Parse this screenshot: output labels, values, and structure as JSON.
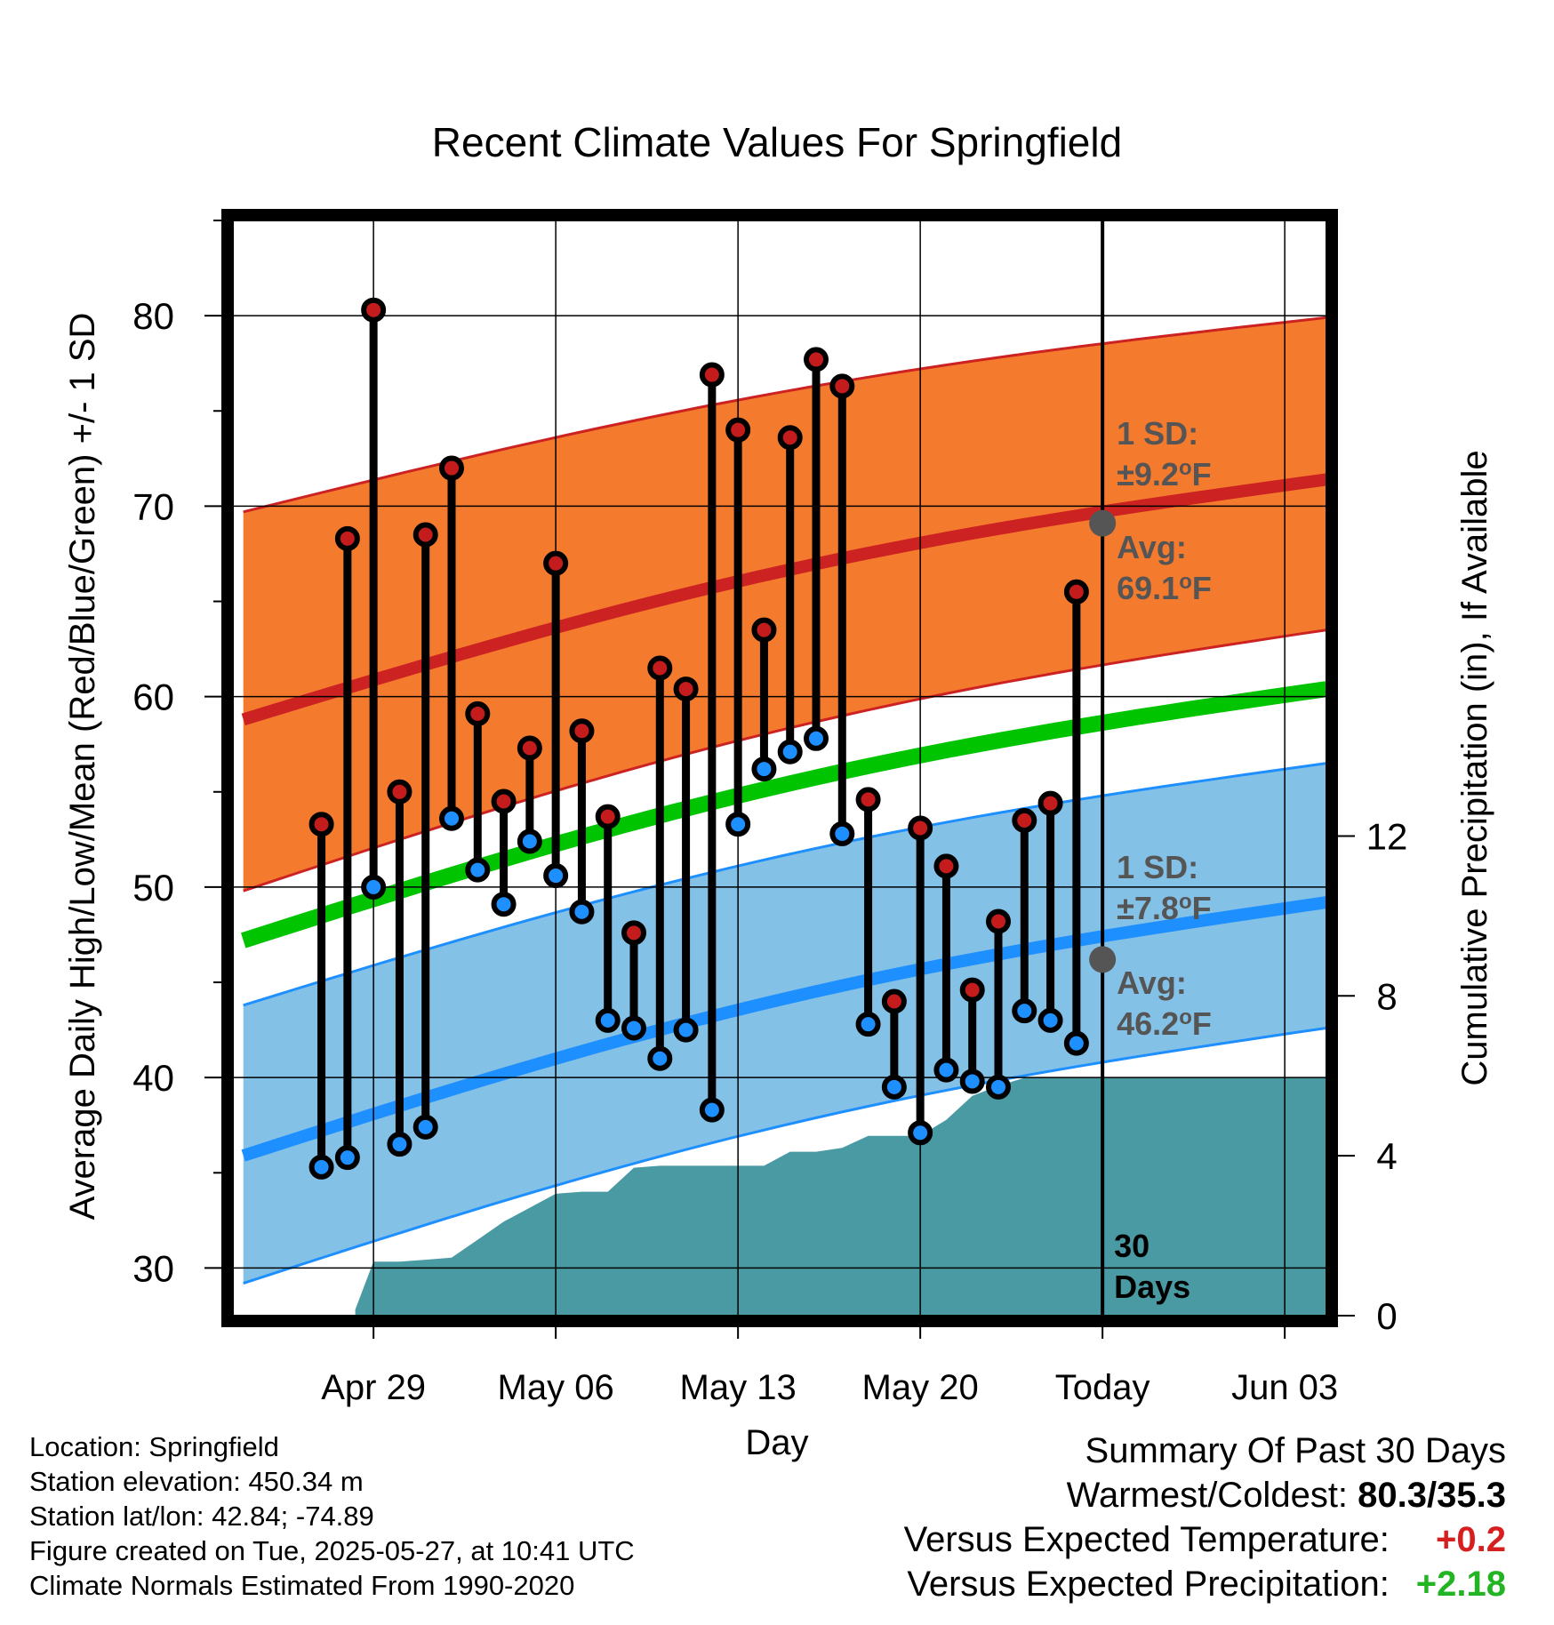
{
  "chart_data": {
    "type": "line",
    "title": "Recent Climate Values For Springfield",
    "xlabel": "Day",
    "ylabel": "Average Daily High/Low/Mean (Red/Blue/Green) +/- 1 SD",
    "y2label": "Cumulative Precipitation (in), If Available",
    "xlim": [
      -3.4,
      38.6
    ],
    "ylim": [
      27.5,
      85
    ],
    "y2lim": [
      0,
      27.4
    ],
    "x_ticks": [
      {
        "day": 2,
        "label": "Apr 29"
      },
      {
        "day": 9,
        "label": "May 06"
      },
      {
        "day": 16,
        "label": "May 13"
      },
      {
        "day": 23,
        "label": "May 20"
      },
      {
        "day": 30,
        "label": "Today"
      },
      {
        "day": 37,
        "label": "Jun 03"
      }
    ],
    "y_ticks": [
      30,
      40,
      50,
      60,
      70,
      80
    ],
    "y2_ticks": [
      0,
      4,
      8,
      12
    ],
    "grid": true,
    "today_day": 30,
    "period_label": [
      "30",
      "Days"
    ],
    "colors": {
      "high_band": "#f47a2e",
      "high_line": "#cc2222",
      "low_band": "#84c1e6",
      "low_line": "#1e8fff",
      "mean_line": "#00c400",
      "precip": "#4a9aa4",
      "high_marker": "#c41c1c",
      "low_marker": "#1e8fff",
      "annotation": "#555555"
    },
    "normals": {
      "days": [
        -3,
        38.6
      ],
      "high_avg": [
        58.8,
        71.4
      ],
      "high_upper": [
        69.7,
        79.9
      ],
      "high_lower": [
        49.8,
        63.5
      ],
      "low_avg": [
        35.9,
        49.2
      ],
      "low_upper": [
        43.8,
        56.5
      ],
      "low_lower": [
        29.2,
        42.6
      ],
      "mean_avg": [
        47.2,
        60.4
      ]
    },
    "annotations": {
      "high_sd": {
        "line1": "1 SD:",
        "line2_value": "±9.2",
        "line2_unit": "F"
      },
      "high_avg": {
        "line1": "Avg:",
        "line2_value": "69.1",
        "line2_unit": "F",
        "value": 69.1
      },
      "low_sd": {
        "line1": "1 SD:",
        "line2_value": "±7.8",
        "line2_unit": "F"
      },
      "low_avg": {
        "line1": "Avg:",
        "line2_value": "46.2",
        "line2_unit": "F",
        "value": 46.2
      }
    },
    "series": [
      {
        "name": "High",
        "days": [
          0,
          1,
          2,
          3,
          4,
          5,
          6,
          7,
          8,
          9,
          10,
          11,
          12,
          13,
          14,
          15,
          16,
          17,
          18,
          19,
          20,
          21,
          22,
          23,
          24,
          25,
          26,
          27,
          28,
          29
        ],
        "values": [
          53.3,
          68.3,
          80.3,
          55.0,
          68.5,
          72.0,
          59.1,
          54.5,
          57.3,
          67.0,
          58.2,
          53.7,
          47.6,
          61.5,
          60.4,
          76.9,
          74.0,
          63.5,
          73.6,
          77.7,
          76.3,
          54.6,
          44.0,
          53.1,
          51.1,
          44.6,
          48.2,
          53.5,
          54.4,
          65.5
        ]
      },
      {
        "name": "Low",
        "days": [
          0,
          1,
          2,
          3,
          4,
          5,
          6,
          7,
          8,
          9,
          10,
          11,
          12,
          13,
          14,
          15,
          16,
          17,
          18,
          19,
          20,
          21,
          22,
          23,
          24,
          25,
          26,
          27,
          28,
          29
        ],
        "values": [
          35.3,
          35.8,
          50.0,
          36.5,
          37.4,
          53.6,
          50.9,
          49.1,
          52.4,
          50.6,
          48.7,
          43.0,
          42.6,
          41.0,
          42.5,
          38.3,
          53.3,
          56.2,
          57.1,
          57.8,
          52.8,
          42.8,
          39.5,
          37.1,
          40.4,
          39.8,
          39.5,
          43.5,
          43.0,
          41.8
        ]
      },
      {
        "name": "Cumulative Precipitation",
        "days": [
          1.3,
          2,
          3,
          4,
          5,
          6,
          7,
          8,
          9,
          10,
          11,
          12,
          13,
          14,
          15,
          16,
          17,
          18,
          19,
          20,
          21,
          22,
          23,
          24,
          25,
          26,
          27,
          28,
          29,
          30,
          38.6
        ],
        "values": [
          0.15,
          1.35,
          1.35,
          1.4,
          1.45,
          1.9,
          2.35,
          2.7,
          3.05,
          3.1,
          3.1,
          3.7,
          3.75,
          3.75,
          3.75,
          3.75,
          3.75,
          4.1,
          4.1,
          4.2,
          4.5,
          4.5,
          4.5,
          4.9,
          5.5,
          5.75,
          5.95,
          5.95,
          5.95,
          5.95,
          5.95
        ]
      }
    ]
  },
  "footer_left": [
    "Location: Springfield",
    "Station elevation: 450.34 m",
    "Station lat/lon: 42.84; -74.89",
    "Figure created on Tue, 2025-05-27, at 10:41 UTC",
    "Climate Normals Estimated From 1990-2020"
  ],
  "summary": {
    "title": "Summary Of Past 30 Days",
    "warmest_coldest_label": "Warmest/Coldest:",
    "warmest_coldest_value": "80.3/35.3",
    "temp_label": "Versus Expected Temperature:",
    "temp_value": "+0.2",
    "temp_color": "#d62020",
    "precip_label": "Versus Expected Precipitation:",
    "precip_value": "+2.18",
    "precip_color": "#22b422"
  }
}
